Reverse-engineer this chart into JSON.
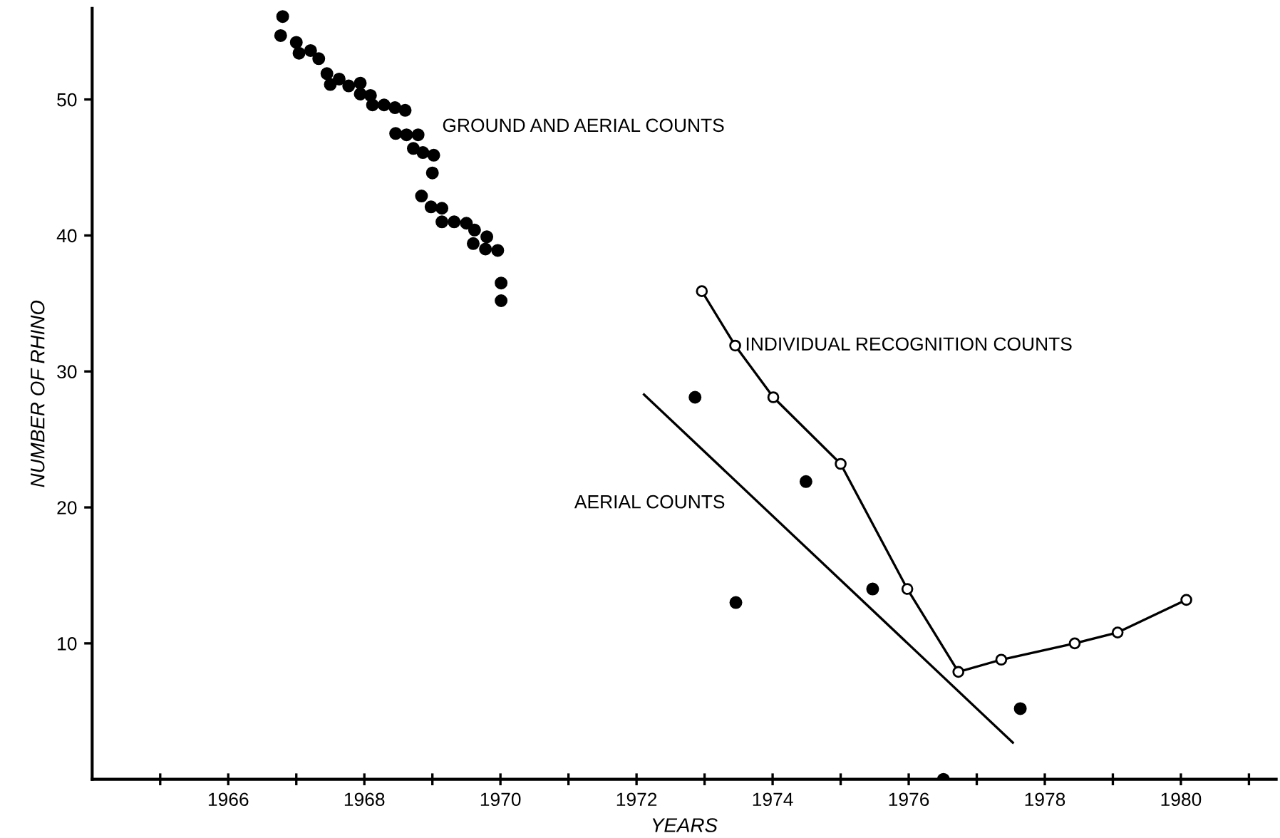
{
  "chart_data": {
    "type": "scatter",
    "xlabel": "YEARS",
    "ylabel": "NUMBER OF RHINO",
    "xlim": [
      1964,
      1981.4
    ],
    "ylim": [
      0,
      56.7
    ],
    "xticks": [
      {
        "value": 1965,
        "label": null
      },
      1966,
      {
        "value": 1967,
        "label": null
      },
      1968,
      {
        "value": 1969,
        "label": null
      },
      1970,
      {
        "value": 1971,
        "label": null
      },
      1972,
      {
        "value": 1973,
        "label": null
      },
      1974,
      {
        "value": 1975,
        "label": null
      },
      1976,
      {
        "value": 1977,
        "label": null
      },
      1978,
      {
        "value": 1979,
        "label": null
      },
      1980,
      {
        "value": 1981,
        "label": null
      }
    ],
    "yticks": [
      10,
      20,
      30,
      40,
      50
    ],
    "grid": false,
    "legend": false,
    "series": [
      {
        "name": "GROUND AND AERIAL COUNTS",
        "marker": "circle",
        "color": "#000000",
        "x": [
          1966.8,
          1966.77,
          1967.0,
          1967.04,
          1967.21,
          1967.33,
          1967.45,
          1967.5,
          1967.63,
          1967.77,
          1967.94,
          1967.94,
          1968.09,
          1968.12,
          1968.29,
          1968.45,
          1968.6,
          1968.46,
          1968.62,
          1968.79,
          1968.72,
          1968.86,
          1969.02,
          1969.0,
          1968.84,
          1968.98,
          1969.14,
          1969.14,
          1969.32,
          1969.5,
          1969.62,
          1969.6,
          1969.8,
          1969.78,
          1969.96,
          1970.01,
          1970.01
        ],
        "values": [
          56.1,
          54.7,
          54.2,
          53.4,
          53.6,
          53.0,
          51.9,
          51.1,
          51.5,
          51.0,
          51.2,
          50.4,
          50.3,
          49.6,
          49.6,
          49.4,
          49.2,
          47.5,
          47.4,
          47.4,
          46.4,
          46.1,
          45.9,
          44.6,
          42.9,
          42.1,
          42.0,
          41.0,
          41.0,
          40.9,
          40.4,
          39.4,
          39.9,
          39.0,
          38.9,
          36.5,
          35.2
        ]
      },
      {
        "name": "INDIVIDUAL RECOGNITION COUNTS",
        "type": "line",
        "marker": "circle",
        "line_style": "solid",
        "color": "#000000",
        "x": [
          1972.96,
          1973.45,
          1974.01,
          1975.0,
          1975.98,
          1976.73,
          1977.36,
          1978.44,
          1979.07,
          1980.08
        ],
        "values": [
          35.9,
          31.9,
          28.1,
          23.2,
          14.0,
          7.9,
          8.8,
          10.0,
          10.8,
          13.2
        ]
      },
      {
        "marker": "circle",
        "color": "#000000",
        "x": [
          1972.86,
          1973.46,
          1974.49,
          1975.47,
          1976.51,
          1977.64
        ],
        "values": [
          28.1,
          13.0,
          21.9,
          14.0,
          0,
          5.2
        ]
      },
      {
        "name": "AERIAL COUNTS",
        "type": "line",
        "marker": "none",
        "line_style": "solid",
        "color": "#000000",
        "x": [
          1972.11,
          1977.53
        ],
        "values": [
          28.3,
          2.7
        ]
      }
    ]
  }
}
